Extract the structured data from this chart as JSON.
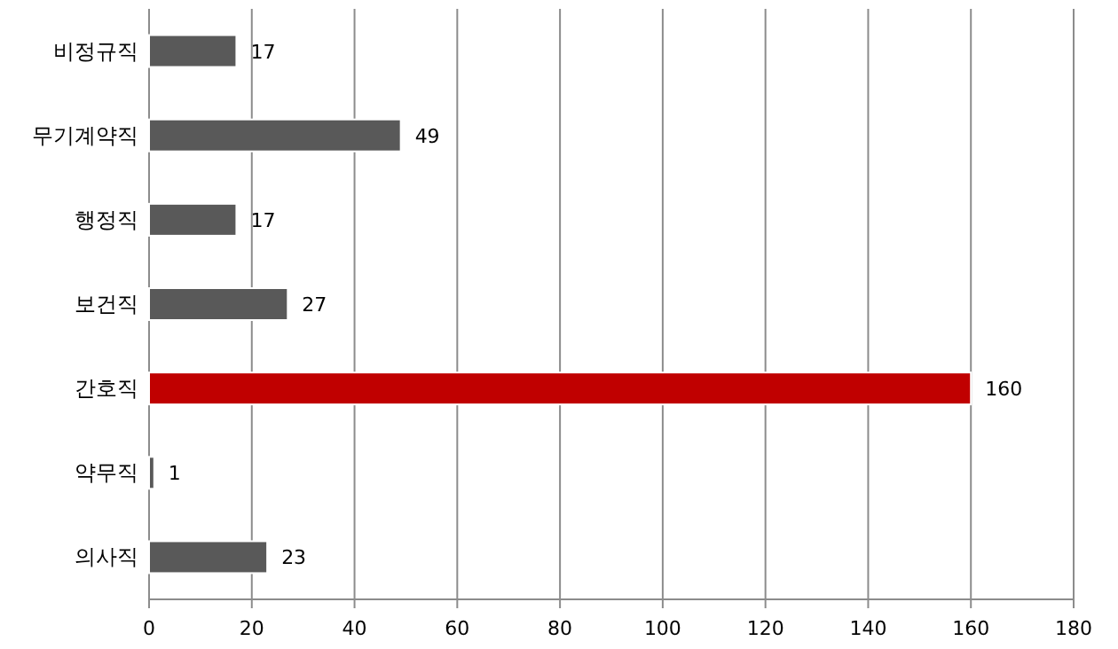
{
  "chart_data": {
    "type": "bar",
    "orientation": "horizontal",
    "categories": [
      "비정규직",
      "무기계약직",
      "행정직",
      "보건직",
      "간호직",
      "약무직",
      "의사직"
    ],
    "values": [
      17,
      49,
      17,
      27,
      160,
      1,
      23
    ],
    "colors": [
      "#595959",
      "#595959",
      "#595959",
      "#595959",
      "#c00000",
      "#595959",
      "#595959"
    ],
    "xlim": [
      0,
      180
    ],
    "xticks": [
      0,
      20,
      40,
      60,
      80,
      100,
      120,
      140,
      160,
      180
    ],
    "grid": "x",
    "data_labels": true
  }
}
